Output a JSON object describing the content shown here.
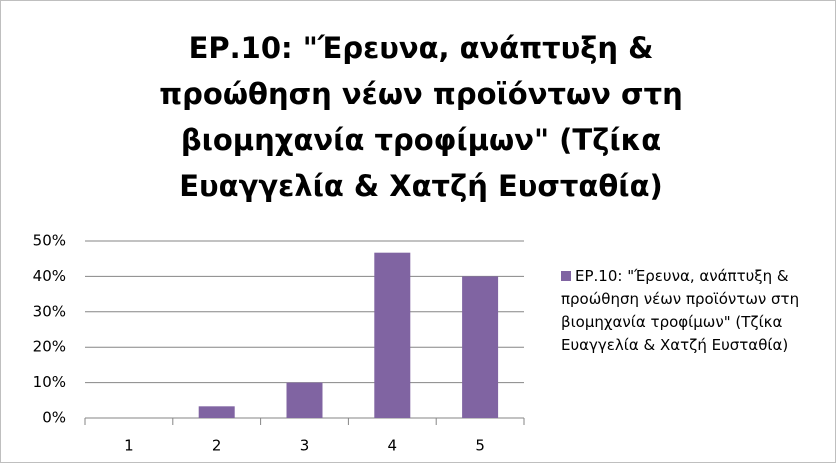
{
  "chart_data": {
    "type": "bar",
    "title": "ΕΡ.10: \"Έρευνα, ανάπτυξη & προώθηση νέων προϊόντων στη βιομηχανία τροφίμων\" (Τζίκα Ευαγγελία & Χατζή Ευσταθία)",
    "categories": [
      "1",
      "2",
      "3",
      "4",
      "5"
    ],
    "series": [
      {
        "name": "ΕΡ.10: \"Έρευνα, ανάπτυξη & προώθηση νέων προϊόντων στη βιομηχανία τροφίμων\" (Τζίκα Ευαγγελία & Χατζή Ευσταθία)",
        "color": "#8064a2",
        "values": [
          0,
          3.3,
          10,
          46.7,
          40
        ]
      }
    ],
    "ylim": [
      0,
      50
    ],
    "yticks": [
      {
        "value": 0,
        "label": "0%"
      },
      {
        "value": 10,
        "label": "10%"
      },
      {
        "value": 20,
        "label": "20%"
      },
      {
        "value": 30,
        "label": "30%"
      },
      {
        "value": 40,
        "label": "40%"
      },
      {
        "value": 50,
        "label": "50%"
      }
    ],
    "grid": true,
    "legend": "right"
  }
}
